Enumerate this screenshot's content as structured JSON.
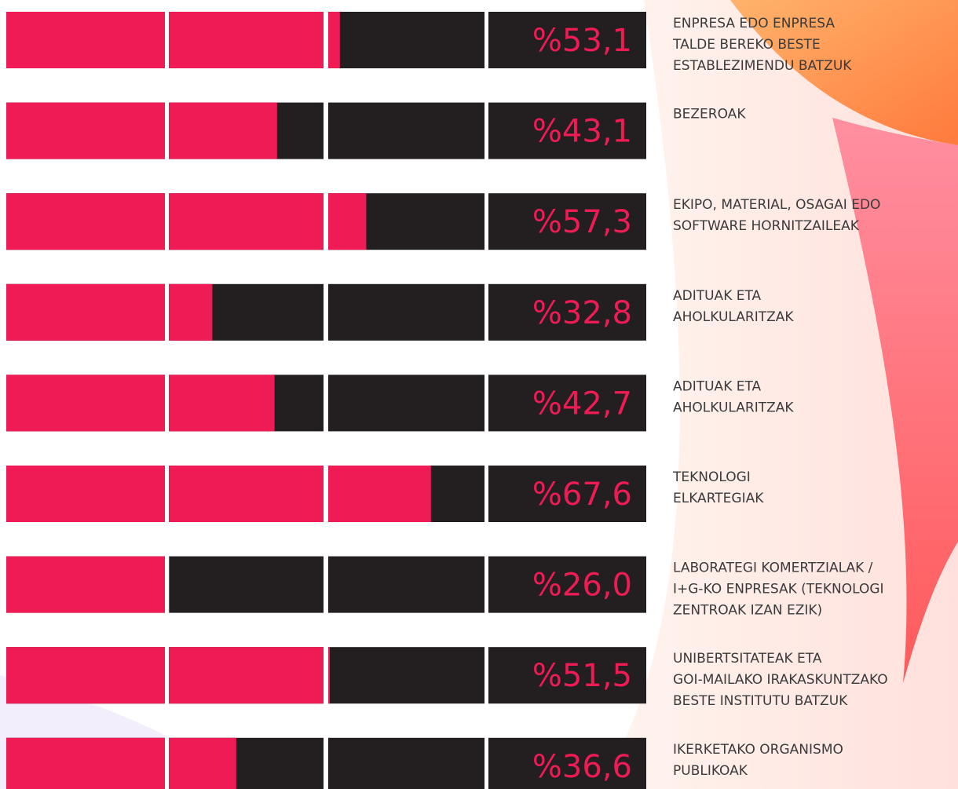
{
  "chart_data": {
    "type": "bar",
    "categories": [
      [
        "ENPRESA EDO ENPRESA",
        "TALDE BEREKO BESTE",
        "ESTABLEZIMENDU BATZUK"
      ],
      [
        "BEZEROAK"
      ],
      [
        "EKIPO, MATERIAL, OSAGAI EDO",
        "SOFTWARE HORNITZAILEAK"
      ],
      [
        "ADITUAK ETA",
        "AHOLKULARITZAK"
      ],
      [
        "ADITUAK ETA",
        "AHOLKULARITZAK"
      ],
      [
        "TEKNOLOGI",
        "ELKARTEGIAK"
      ],
      [
        "LABORATEGI KOMERTZIALAK /",
        "I+G-KO ENPRESAK (TEKNOLOGI",
        "ZENTROAK IZAN EZIK)"
      ],
      [
        "UNIBERTSITATEAK ETA",
        "GOI-MAILAKO IRAKASKUNTZAKO",
        "BESTE INSTITUTU BATZUK"
      ],
      [
        "IKERKETAKO ORGANISMO",
        "PUBLIKOAK"
      ]
    ],
    "values": [
      53.1,
      43.1,
      57.3,
      32.8,
      42.7,
      67.6,
      26.0,
      51.5,
      36.6
    ],
    "value_labels": [
      "%53,1",
      "%43,1",
      "%57,3",
      "%32,8",
      "%42,7",
      "%67,6",
      "%26,0",
      "%51,5",
      "%36,6"
    ],
    "color": "#ee1b55",
    "track_color": "#231f20"
  }
}
